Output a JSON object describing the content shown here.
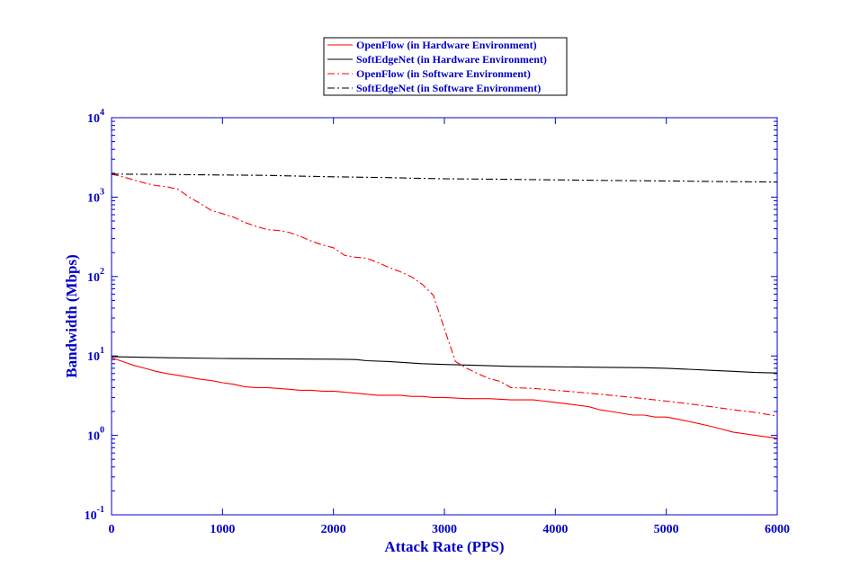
{
  "chart_data": {
    "type": "line",
    "xlabel": "Attack Rate (PPS)",
    "ylabel": "Bandwidth (Mbps)",
    "xlim": [
      0,
      6000
    ],
    "ylim": [
      0.1,
      10000
    ],
    "yscale": "log",
    "xticks": [
      0,
      1000,
      2000,
      3000,
      4000,
      5000,
      6000
    ],
    "xtick_labels": [
      "0",
      "1000",
      "2000",
      "3000",
      "4000",
      "5000",
      "6000"
    ],
    "yticks": [
      0.1,
      1,
      10,
      100,
      1000,
      10000
    ],
    "ytick_base": "10",
    "ytick_exponents": [
      "-1",
      "0",
      "1",
      "2",
      "3",
      "4"
    ],
    "legend_position": "top-center-outside",
    "colors": {
      "axis": "#0000c8",
      "openflow": "#ff0000",
      "softedgenet": "#000000"
    },
    "series": [
      {
        "name": "OpenFlow (in Hardware Environment)",
        "color": "#ff0000",
        "dash": "solid",
        "x": [
          0,
          100,
          200,
          300,
          400,
          500,
          600,
          700,
          800,
          900,
          1000,
          1100,
          1200,
          1300,
          1400,
          1500,
          1600,
          1700,
          1800,
          1900,
          2000,
          2100,
          2200,
          2300,
          2400,
          2500,
          2600,
          2700,
          2800,
          2900,
          3000,
          3200,
          3400,
          3600,
          3800,
          3900,
          4000,
          4100,
          4200,
          4300,
          4400,
          4500,
          4600,
          4700,
          4800,
          4900,
          5000,
          5100,
          5200,
          5300,
          5400,
          5500,
          5600,
          5700,
          5800,
          5900,
          6000
        ],
        "y": [
          9.5,
          8.5,
          7.6,
          7.0,
          6.4,
          6.0,
          5.7,
          5.4,
          5.1,
          4.9,
          4.6,
          4.4,
          4.1,
          4.0,
          4.0,
          3.9,
          3.8,
          3.7,
          3.7,
          3.6,
          3.6,
          3.5,
          3.4,
          3.3,
          3.2,
          3.2,
          3.2,
          3.1,
          3.1,
          3.0,
          3.0,
          2.9,
          2.9,
          2.8,
          2.8,
          2.7,
          2.6,
          2.5,
          2.4,
          2.3,
          2.1,
          2.0,
          1.9,
          1.8,
          1.8,
          1.7,
          1.7,
          1.6,
          1.5,
          1.4,
          1.3,
          1.2,
          1.1,
          1.05,
          1.0,
          0.96,
          0.92
        ]
      },
      {
        "name": "SoftEdgeNet (in Hardware Environment)",
        "color": "#000000",
        "dash": "solid",
        "x": [
          0,
          500,
          1000,
          1500,
          2000,
          2200,
          2300,
          2500,
          2800,
          3000,
          3300,
          3600,
          4000,
          4400,
          4800,
          5000,
          5200,
          5400,
          5600,
          5800,
          6000
        ],
        "y": [
          9.8,
          9.5,
          9.3,
          9.2,
          9.1,
          9.0,
          8.7,
          8.5,
          8.0,
          7.8,
          7.6,
          7.4,
          7.3,
          7.2,
          7.1,
          7.0,
          6.8,
          6.6,
          6.4,
          6.2,
          6.1
        ]
      },
      {
        "name": "OpenFlow (in Software Environment)",
        "color": "#ff0000",
        "dash": "dashdot",
        "x": [
          0,
          100,
          200,
          300,
          400,
          500,
          600,
          700,
          800,
          900,
          1000,
          1100,
          1200,
          1300,
          1400,
          1500,
          1600,
          1700,
          1800,
          1900,
          2000,
          2100,
          2200,
          2300,
          2400,
          2500,
          2600,
          2700,
          2800,
          2900,
          3000,
          3100,
          3200,
          3300,
          3400,
          3500,
          3600,
          3800,
          4000,
          4200,
          4400,
          4600,
          4800,
          5000,
          5200,
          5400,
          5600,
          5800,
          6000
        ],
        "y": [
          1950,
          1800,
          1650,
          1500,
          1400,
          1350,
          1250,
          1000,
          830,
          680,
          620,
          560,
          480,
          430,
          390,
          380,
          360,
          320,
          280,
          250,
          230,
          185,
          175,
          170,
          150,
          130,
          115,
          100,
          80,
          58,
          22,
          8.5,
          7.0,
          6.0,
          5.2,
          4.8,
          4.0,
          3.9,
          3.7,
          3.5,
          3.3,
          3.1,
          2.9,
          2.7,
          2.5,
          2.3,
          2.1,
          1.95,
          1.75
        ]
      },
      {
        "name": "SoftEdgeNet (in Software Environment)",
        "color": "#000000",
        "dash": "dashdot",
        "x": [
          0,
          500,
          1000,
          1400,
          1600,
          2000,
          2500,
          2800,
          3000,
          3500,
          4000,
          4500,
          5000,
          5500,
          6000
        ],
        "y": [
          1950,
          1930,
          1900,
          1880,
          1850,
          1800,
          1760,
          1720,
          1700,
          1680,
          1650,
          1620,
          1600,
          1570,
          1550
        ]
      }
    ]
  }
}
